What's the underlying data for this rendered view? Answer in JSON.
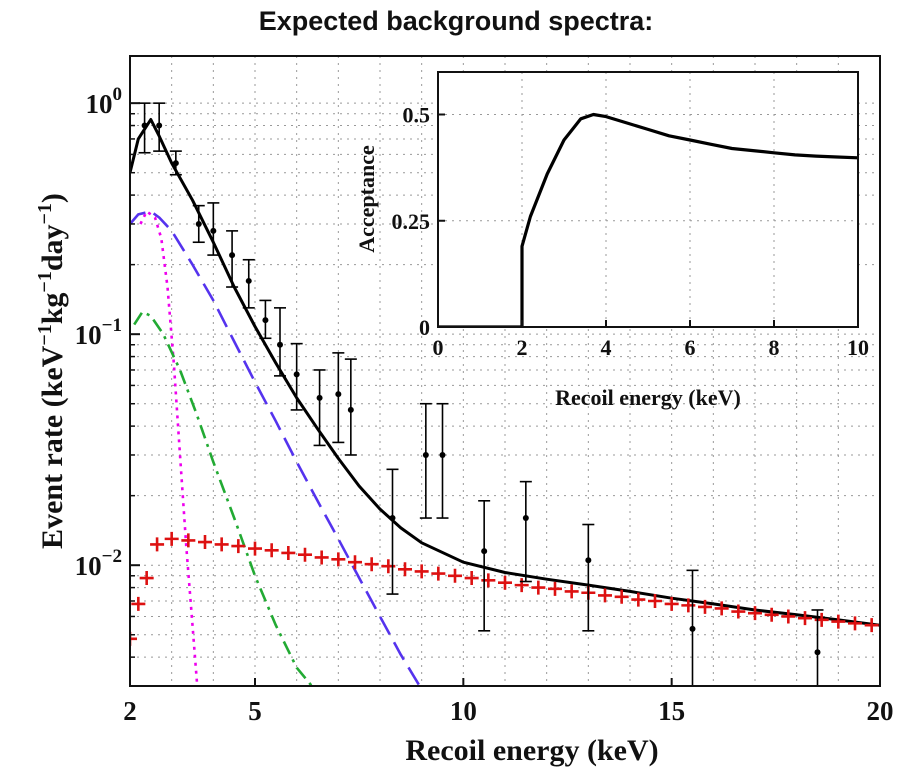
{
  "chart_data": [
    {
      "type": "line",
      "title": "Expected background spectra:",
      "xlabel": "Recoil energy (keV)",
      "ylabel": "Event rate (keV",
      "ylabel_parts": [
        "Event rate (keV",
        "−1",
        "kg",
        "−1",
        "day",
        "−1",
        ")"
      ],
      "xscale": "linear",
      "yscale": "log",
      "xlim": [
        2,
        20
      ],
      "ylim": [
        0.003,
        1.6
      ],
      "x_ticks": [
        2,
        5,
        10,
        15,
        20
      ],
      "y_ticks": [
        {
          "value": 0.01,
          "base": "10",
          "exp": "−2"
        },
        {
          "value": 0.1,
          "base": "10",
          "exp": "−1"
        },
        {
          "value": 1,
          "base": "10",
          "exp": "0"
        }
      ],
      "grid": true,
      "series": [
        {
          "style": "solid",
          "color": "#000000",
          "x": [
            2.0,
            2.2,
            2.5,
            2.7,
            3.0,
            3.5,
            4.0,
            4.5,
            5.0,
            5.5,
            6.0,
            6.5,
            7.0,
            7.5,
            8.0,
            8.5,
            9.0,
            10.0,
            11.0,
            12.0,
            13.0,
            14.0,
            15.0,
            16.0,
            17.0,
            18.0,
            19.0,
            20.0
          ],
          "y": [
            0.5,
            0.7,
            0.85,
            0.72,
            0.55,
            0.38,
            0.25,
            0.16,
            0.108,
            0.075,
            0.053,
            0.039,
            0.029,
            0.022,
            0.0175,
            0.0145,
            0.0125,
            0.0103,
            0.0093,
            0.0087,
            0.0082,
            0.0077,
            0.0072,
            0.0068,
            0.0064,
            0.0061,
            0.0058,
            0.0055
          ]
        },
        {
          "style": "dashed",
          "color": "#5533ee",
          "x": [
            2.0,
            2.2,
            2.5,
            2.7,
            3.0,
            3.5,
            4.0,
            4.5,
            5.0,
            5.5,
            6.0,
            6.5,
            7.0,
            7.5,
            8.0,
            8.5,
            9.0
          ],
          "y": [
            0.3,
            0.33,
            0.34,
            0.32,
            0.28,
            0.2,
            0.14,
            0.093,
            0.062,
            0.042,
            0.028,
            0.019,
            0.013,
            0.0088,
            0.006,
            0.0041,
            0.0029
          ]
        },
        {
          "style": "dotted",
          "color": "#ee00ee",
          "x": [
            2.25,
            2.4,
            2.6,
            2.75,
            2.9,
            3.05,
            3.2,
            3.35,
            3.5,
            3.62
          ],
          "y": [
            0.3,
            0.34,
            0.32,
            0.26,
            0.16,
            0.075,
            0.03,
            0.012,
            0.0055,
            0.0029
          ]
        },
        {
          "style": "dashdot",
          "color": "#22aa33",
          "x": [
            2.1,
            2.3,
            2.5,
            2.8,
            3.2,
            3.6,
            4.0,
            4.5,
            5.0,
            5.5,
            6.0,
            6.5
          ],
          "y": [
            0.11,
            0.125,
            0.12,
            0.1,
            0.07,
            0.045,
            0.028,
            0.016,
            0.009,
            0.0055,
            0.0036,
            0.0028
          ]
        },
        {
          "style": "markers-plus",
          "color": "#dd1111",
          "x": [
            2.0,
            2.2,
            2.4,
            2.65,
            3.0,
            3.4,
            3.8,
            4.2,
            4.6,
            5.0,
            5.4,
            5.8,
            6.2,
            6.6,
            7.0,
            7.4,
            7.8,
            8.2,
            8.6,
            9.0,
            9.4,
            9.8,
            10.2,
            10.6,
            11.0,
            11.4,
            11.8,
            12.2,
            12.6,
            13.0,
            13.4,
            13.8,
            14.2,
            14.6,
            15.0,
            15.4,
            15.8,
            16.2,
            16.6,
            17.0,
            17.4,
            17.8,
            18.2,
            18.6,
            19.0,
            19.4,
            19.8
          ],
          "y": [
            0.0048,
            0.0068,
            0.0088,
            0.0123,
            0.013,
            0.0128,
            0.0126,
            0.0123,
            0.0121,
            0.0118,
            0.0116,
            0.0113,
            0.0111,
            0.0108,
            0.0106,
            0.0103,
            0.0101,
            0.0099,
            0.0096,
            0.0094,
            0.0092,
            0.009,
            0.0088,
            0.0086,
            0.0084,
            0.0082,
            0.008,
            0.0079,
            0.0077,
            0.0076,
            0.0074,
            0.0073,
            0.0071,
            0.007,
            0.0068,
            0.0067,
            0.0066,
            0.0065,
            0.0063,
            0.0062,
            0.0061,
            0.006,
            0.0059,
            0.0058,
            0.0057,
            0.0056,
            0.0055
          ]
        },
        {
          "style": "errorbar",
          "color": "#000000",
          "x": [
            2.35,
            2.7,
            3.1,
            3.65,
            4.0,
            4.45,
            4.85,
            5.25,
            5.6,
            6.0,
            6.55,
            7.0,
            7.3,
            8.3,
            9.1,
            9.5,
            10.5,
            11.5,
            13.0,
            15.5,
            18.5
          ],
          "y": [
            0.8,
            0.8,
            0.55,
            0.3,
            0.28,
            0.22,
            0.17,
            0.115,
            0.09,
            0.067,
            0.053,
            0.055,
            0.047,
            0.016,
            0.03,
            0.03,
            0.0115,
            0.016,
            0.0105,
            0.0053,
            0.0042
          ],
          "yerr_low": [
            0.61,
            0.62,
            0.49,
            0.25,
            0.22,
            0.16,
            0.13,
            0.096,
            0.066,
            0.047,
            0.033,
            0.034,
            0.03,
            0.0075,
            0.016,
            0.016,
            0.0052,
            0.0085,
            0.0052,
            0.0025,
            0.0026
          ],
          "yerr_high": [
            1.0,
            1.0,
            0.62,
            0.36,
            0.37,
            0.28,
            0.21,
            0.14,
            0.13,
            0.091,
            0.07,
            0.083,
            0.078,
            0.026,
            0.05,
            0.05,
            0.019,
            0.023,
            0.015,
            0.0095,
            0.0064
          ]
        }
      ]
    },
    {
      "type": "line",
      "title": "",
      "xlabel": "Recoil energy (keV)",
      "ylabel": "Acceptance",
      "xlim": [
        0,
        10
      ],
      "ylim": [
        0,
        0.6
      ],
      "x_ticks": [
        0,
        2,
        4,
        6,
        8,
        10
      ],
      "y_ticks": [
        0,
        0.25,
        0.5
      ],
      "y_tick_labels": [
        "0",
        "0.25",
        "0.5"
      ],
      "grid": true,
      "series": [
        {
          "style": "solid",
          "color": "#000000",
          "x": [
            0,
            1.98,
            2.0,
            2.0,
            2.2,
            2.6,
            3.0,
            3.4,
            3.7,
            4.0,
            4.5,
            5.0,
            5.5,
            6.0,
            6.5,
            7.0,
            7.5,
            8.0,
            8.5,
            9.0,
            9.5,
            10.0
          ],
          "y": [
            0,
            0,
            0,
            0.19,
            0.26,
            0.36,
            0.44,
            0.49,
            0.5,
            0.495,
            0.48,
            0.465,
            0.45,
            0.44,
            0.43,
            0.42,
            0.415,
            0.41,
            0.405,
            0.402,
            0.4,
            0.398
          ]
        }
      ]
    }
  ]
}
